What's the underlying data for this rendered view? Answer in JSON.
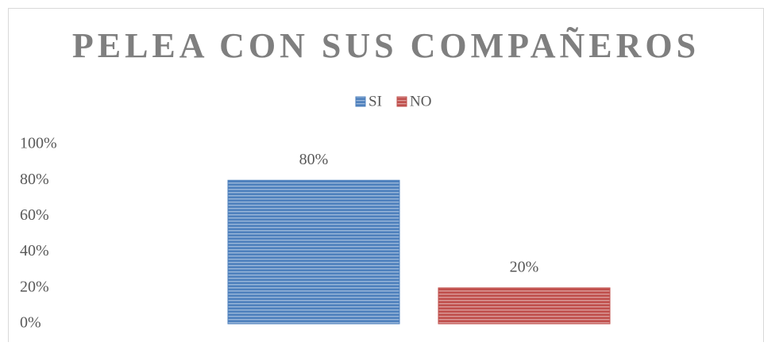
{
  "chart_data": {
    "type": "bar",
    "title": "PELEA CON SUS COMPAÑEROS",
    "categories": [
      null
    ],
    "series": [
      {
        "name": "SI",
        "color": "#4f81bd",
        "values": [
          80
        ],
        "value_labels": [
          "80%"
        ]
      },
      {
        "name": "NO",
        "color": "#c0504d",
        "values": [
          20
        ],
        "value_labels": [
          "20%"
        ]
      }
    ],
    "ylim": [
      0,
      100
    ],
    "yticks": [
      {
        "value": 0,
        "label": "0%"
      },
      {
        "value": 20,
        "label": "20%"
      },
      {
        "value": 40,
        "label": "40%"
      },
      {
        "value": 60,
        "label": "60%"
      },
      {
        "value": 80,
        "label": "80%"
      },
      {
        "value": 100,
        "label": "100%"
      }
    ],
    "legend": "top"
  }
}
